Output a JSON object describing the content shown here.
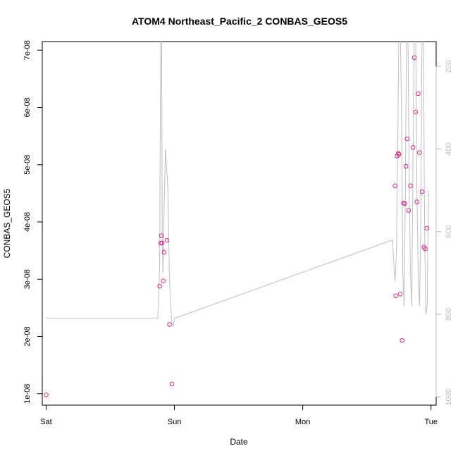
{
  "chart_data": {
    "type": "scatter",
    "title": "ATOM4 Northeast_Pacific_2 CONBAS_GEOS5",
    "xlabel": "Date",
    "ylabel": "CONBAS_GEOS5",
    "x_tick_labels": [
      "Sat",
      "Sun",
      "Mon",
      "Tue"
    ],
    "x_ticks_days": [
      0,
      1,
      2,
      3
    ],
    "xlim_days": [
      -0.03,
      3.04
    ],
    "ylim": [
      8e-09,
      7.15e-08
    ],
    "y_ticks": [
      1e-08,
      2e-08,
      3e-08,
      4e-08,
      5e-08,
      6e-08,
      7e-08
    ],
    "y_tick_labels": [
      "1e-08",
      "2e-08",
      "3e-08",
      "4e-08",
      "5e-08",
      "6e-08",
      "7e-08"
    ],
    "right_axis": {
      "color": "#bebebe",
      "ylim_reversed": [
        1020,
        140
      ],
      "ticks": [
        200,
        400,
        600,
        800,
        1000
      ],
      "tick_labels": [
        "200",
        "400",
        "600",
        "800",
        "1000"
      ]
    },
    "colors": {
      "points": "#e0218a",
      "line": "#bebebe",
      "axis": "#000000"
    },
    "points_series": {
      "x_days": [
        0.0,
        0.885,
        0.893,
        0.898,
        0.903,
        0.913,
        0.92,
        0.942,
        0.962,
        0.98,
        2.72,
        2.725,
        2.735,
        2.745,
        2.75,
        2.76,
        2.775,
        2.785,
        2.795,
        2.805,
        2.815,
        2.825,
        2.84,
        2.86,
        2.87,
        2.88,
        2.89,
        2.9,
        2.91,
        2.93,
        2.945,
        2.955,
        2.968
      ],
      "y": [
        9.8e-09,
        2.88e-08,
        3.63e-08,
        3.76e-08,
        3.63e-08,
        2.97e-08,
        3.47e-08,
        3.68e-08,
        2.21e-08,
        1.17e-08,
        4.63e-08,
        2.71e-08,
        5.15e-08,
        5.2e-08,
        5.18e-08,
        2.74e-08,
        1.93e-08,
        4.33e-08,
        4.32e-08,
        4.97e-08,
        5.45e-08,
        4.2e-08,
        4.63e-08,
        5.3e-08,
        6.87e-08,
        5.92e-08,
        4.35e-08,
        6.24e-08,
        5.21e-08,
        4.53e-08,
        3.56e-08,
        3.53e-08,
        3.89e-08
      ]
    },
    "line_series": {
      "x_days": [
        0.0,
        0.87,
        0.885,
        0.89,
        0.895,
        0.9,
        0.905,
        0.91,
        0.915,
        0.93,
        0.95,
        0.96,
        0.97,
        0.98,
        0.99,
        1.0,
        2.7,
        2.71,
        2.72,
        2.73,
        2.74,
        2.75,
        2.76,
        2.77,
        2.78,
        2.79,
        2.8,
        2.81,
        2.82,
        2.83,
        2.84,
        2.85,
        2.86,
        2.87,
        2.88,
        2.89,
        2.9,
        2.91,
        2.92,
        2.93,
        2.94,
        2.95,
        2.96,
        2.97,
        2.98
      ],
      "pressure": [
        810,
        810,
        680,
        300,
        120,
        120,
        600,
        700,
        600,
        400,
        500,
        700,
        780,
        820,
        830,
        810,
        620,
        680,
        720,
        650,
        400,
        100,
        100,
        300,
        700,
        780,
        500,
        100,
        100,
        500,
        700,
        780,
        400,
        100,
        100,
        500,
        700,
        780,
        600,
        100,
        100,
        600,
        800,
        780,
        500
      ]
    }
  }
}
